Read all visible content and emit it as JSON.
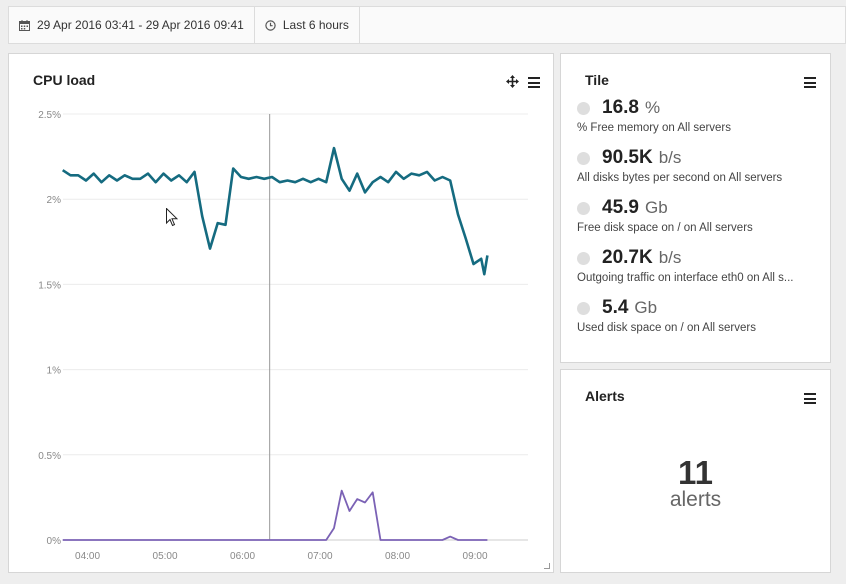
{
  "toolbar": {
    "date_range": "29 Apr 2016 03:41 - 29 Apr 2016 09:41",
    "quick_range": "Last 6 hours",
    "date_icon": "calendar-icon",
    "quick_icon": "clock-icon"
  },
  "cpu_panel": {
    "title": "CPU load",
    "move_icon": "move-icon",
    "menu_icon": "menu-icon"
  },
  "chart_data": {
    "type": "line",
    "title": "CPU load",
    "y_ticks": [
      "2.5%",
      "2%",
      "1.5%",
      "1%",
      "0.5%",
      "0%"
    ],
    "x_ticks": [
      "04:00",
      "05:00",
      "06:00",
      "07:00",
      "08:00",
      "09:00"
    ],
    "ylim": [
      0,
      2.5
    ],
    "xlim": [
      "03:41",
      "09:41"
    ],
    "grid": true,
    "series": [
      {
        "color": "#156b80",
        "points": [
          [
            3.68,
            2.17
          ],
          [
            3.78,
            2.14
          ],
          [
            3.88,
            2.14
          ],
          [
            3.98,
            2.11
          ],
          [
            4.08,
            2.15
          ],
          [
            4.18,
            2.1
          ],
          [
            4.28,
            2.14
          ],
          [
            4.38,
            2.11
          ],
          [
            4.48,
            2.14
          ],
          [
            4.58,
            2.12
          ],
          [
            4.68,
            2.12
          ],
          [
            4.78,
            2.15
          ],
          [
            4.88,
            2.1
          ],
          [
            4.98,
            2.15
          ],
          [
            5.08,
            2.11
          ],
          [
            5.18,
            2.14
          ],
          [
            5.28,
            2.1
          ],
          [
            5.38,
            2.16
          ],
          [
            5.48,
            1.9
          ],
          [
            5.58,
            1.71
          ],
          [
            5.68,
            1.86
          ],
          [
            5.78,
            1.85
          ],
          [
            5.88,
            2.18
          ],
          [
            5.98,
            2.13
          ],
          [
            6.08,
            2.12
          ],
          [
            6.18,
            2.13
          ],
          [
            6.28,
            2.12
          ],
          [
            6.38,
            2.13
          ],
          [
            6.48,
            2.1
          ],
          [
            6.58,
            2.11
          ],
          [
            6.68,
            2.1
          ],
          [
            6.78,
            2.12
          ],
          [
            6.88,
            2.1
          ],
          [
            6.98,
            2.12
          ],
          [
            7.08,
            2.1
          ],
          [
            7.18,
            2.3
          ],
          [
            7.28,
            2.12
          ],
          [
            7.38,
            2.05
          ],
          [
            7.48,
            2.15
          ],
          [
            7.58,
            2.04
          ],
          [
            7.68,
            2.1
          ],
          [
            7.78,
            2.13
          ],
          [
            7.88,
            2.1
          ],
          [
            7.98,
            2.16
          ],
          [
            8.08,
            2.12
          ],
          [
            8.18,
            2.15
          ],
          [
            8.28,
            2.14
          ],
          [
            8.38,
            2.16
          ],
          [
            8.48,
            2.11
          ],
          [
            8.58,
            2.13
          ],
          [
            8.68,
            2.11
          ],
          [
            8.78,
            1.91
          ],
          [
            8.88,
            1.77
          ],
          [
            8.98,
            1.62
          ],
          [
            9.08,
            1.65
          ],
          [
            9.12,
            1.56
          ],
          [
            9.16,
            1.67
          ]
        ]
      },
      {
        "color": "#7b62b5",
        "points": [
          [
            3.68,
            0.0
          ],
          [
            6.88,
            0.0
          ],
          [
            7.08,
            0.0
          ],
          [
            7.18,
            0.07
          ],
          [
            7.28,
            0.29
          ],
          [
            7.38,
            0.17
          ],
          [
            7.48,
            0.24
          ],
          [
            7.58,
            0.22
          ],
          [
            7.68,
            0.28
          ],
          [
            7.78,
            0.0
          ],
          [
            8.58,
            0.0
          ],
          [
            8.68,
            0.02
          ],
          [
            8.78,
            0.0
          ],
          [
            9.16,
            0.0
          ]
        ]
      }
    ],
    "crosshair_x": 6.35
  },
  "tile_panel": {
    "title": "Tile",
    "menu_icon": "menu-icon",
    "metrics": [
      {
        "value": "16.8",
        "unit": "%",
        "label": "% Free memory on All servers"
      },
      {
        "value": "90.5K",
        "unit": "b/s",
        "label": "All disks bytes per second on All servers"
      },
      {
        "value": "45.9",
        "unit": "Gb",
        "label": "Free disk space on / on All servers"
      },
      {
        "value": "20.7K",
        "unit": "b/s",
        "label": "Outgoing traffic on interface eth0 on All s..."
      },
      {
        "value": "5.4",
        "unit": "Gb",
        "label": "Used disk space on / on All servers"
      }
    ]
  },
  "alerts_panel": {
    "title": "Alerts",
    "menu_icon": "menu-icon",
    "count": "11",
    "label": "alerts"
  }
}
